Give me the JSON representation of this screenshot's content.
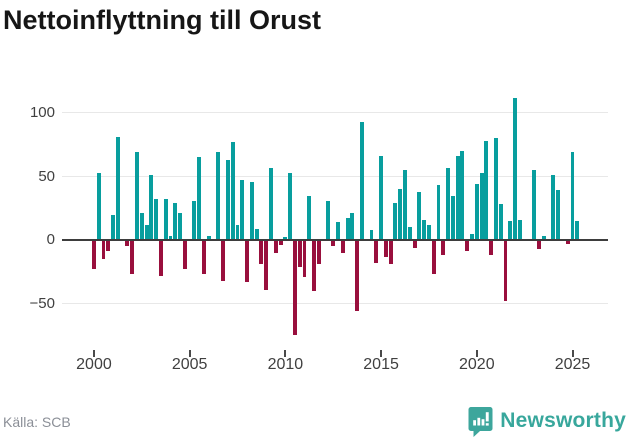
{
  "title": "Nettoinflyttning till Orust",
  "source": "Källa: SCB",
  "brand": {
    "name": "Newsworthy",
    "icon": "newsworthy-speech-bubble-chart-icon",
    "color": "#38a79c"
  },
  "colors": {
    "positive_bar": "#089e9e",
    "negative_bar": "#990f3d",
    "gridline": "#e8e8e8",
    "zero_line": "#3d3d3d",
    "axis_text": "#404040",
    "title_text": "#161616",
    "source_text": "#8b8f97"
  },
  "chart_data": {
    "type": "bar",
    "title": "Nettoinflyttning till Orust",
    "xlabel": "",
    "ylabel": "",
    "x_unit": "quarter",
    "start_period": "2000Q1",
    "end_period": "2025Q2",
    "grid": "horizontal",
    "legend": "none",
    "ylim": [
      -80,
      120
    ],
    "y_tick_values": [
      100,
      50,
      0,
      -50
    ],
    "y_tick_labels": [
      "100",
      "50",
      "0",
      "−50"
    ],
    "x_tick_labels": [
      "2000",
      "2005",
      "2010",
      "2015",
      "2020",
      "2025"
    ],
    "x_tick_indices": [
      0,
      20,
      40,
      60,
      80,
      100
    ],
    "values": [
      -23,
      53,
      -15,
      -9,
      20,
      81,
      0,
      -5,
      -27,
      69,
      21,
      12,
      51,
      32,
      -28,
      32,
      3,
      29,
      21,
      -23,
      0,
      31,
      65,
      -27,
      3,
      0,
      69,
      -32,
      63,
      77,
      12,
      47,
      -33,
      46,
      9,
      -19,
      -39,
      57,
      -10,
      -4,
      2,
      53,
      -75,
      -21,
      -29,
      35,
      -40,
      -19,
      0,
      31,
      -5,
      14,
      -10,
      17,
      21,
      -56,
      93,
      0,
      8,
      -18,
      66,
      -13,
      -19,
      29,
      40,
      55,
      10,
      -6,
      38,
      16,
      12,
      -27,
      43,
      -12,
      57,
      35,
      66,
      70,
      -9,
      5,
      44,
      53,
      78,
      -12,
      80,
      28,
      -48,
      15,
      112,
      16,
      0,
      0,
      55,
      -7,
      3,
      0,
      51,
      39,
      0,
      -3,
      69,
      15
    ]
  }
}
